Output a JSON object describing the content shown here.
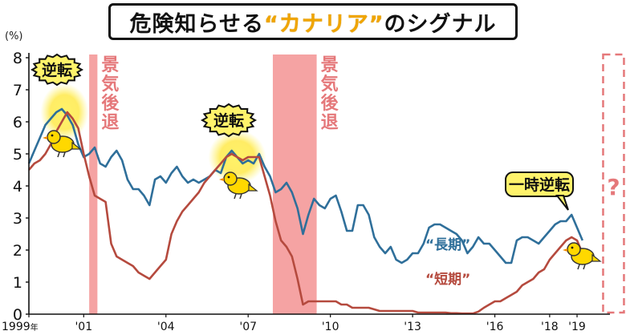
{
  "title": {
    "prefix": "危険知らせる",
    "highlight": "“カナリア”",
    "suffix": "のシグナル"
  },
  "colors": {
    "long": "#2f6f9a",
    "short": "#b54a3e",
    "recession": "#f5a3a3",
    "recession_text": "#e5787a",
    "question": "#e5787a",
    "glow": "#fff36b"
  },
  "chart_data": {
    "type": "line",
    "unit": "(%)",
    "ylim": [
      0,
      8
    ],
    "y_ticks": [
      0,
      1,
      2,
      3,
      4,
      5,
      6,
      7,
      8
    ],
    "xlim": [
      1999.0,
      2020.2
    ],
    "x_ticks": [
      {
        "value": 1999.0,
        "label": "1999",
        "suffix": "年"
      },
      {
        "value": 2001.0,
        "label": "'01"
      },
      {
        "value": 2004.0,
        "label": "'04"
      },
      {
        "value": 2007.0,
        "label": "'07"
      },
      {
        "value": 2010.0,
        "label": "'10"
      },
      {
        "value": 2013.0,
        "label": "'13"
      },
      {
        "value": 2016.0,
        "label": "'16"
      },
      {
        "value": 2018.0,
        "label": "'18"
      },
      {
        "value": 2019.0,
        "label": "'19"
      }
    ],
    "recessions": [
      {
        "start": 2001.2,
        "end": 2001.5,
        "label": "景気後退"
      },
      {
        "start": 2007.9,
        "end": 2009.5,
        "label": "景気後退"
      }
    ],
    "series": [
      {
        "name": "“長期”",
        "x": [
          1999.0,
          1999.2,
          1999.4,
          1999.6,
          1999.8,
          2000.0,
          2000.2,
          2000.4,
          2000.6,
          2000.8,
          2001.0,
          2001.2,
          2001.4,
          2001.6,
          2001.8,
          2002.0,
          2002.2,
          2002.4,
          2002.6,
          2002.8,
          2003.0,
          2003.2,
          2003.4,
          2003.6,
          2003.8,
          2004.0,
          2004.2,
          2004.4,
          2004.6,
          2004.8,
          2005.0,
          2005.2,
          2005.4,
          2005.6,
          2005.8,
          2006.0,
          2006.2,
          2006.4,
          2006.6,
          2006.8,
          2007.0,
          2007.2,
          2007.4,
          2007.6,
          2007.8,
          2008.0,
          2008.2,
          2008.4,
          2008.6,
          2008.8,
          2009.0,
          2009.2,
          2009.4,
          2009.6,
          2009.8,
          2010.0,
          2010.2,
          2010.4,
          2010.6,
          2010.8,
          2011.0,
          2011.2,
          2011.4,
          2011.6,
          2011.8,
          2012.0,
          2012.2,
          2012.4,
          2012.6,
          2012.8,
          2013.0,
          2013.2,
          2013.4,
          2013.6,
          2013.8,
          2014.0,
          2014.2,
          2014.4,
          2014.6,
          2014.8,
          2015.0,
          2015.2,
          2015.4,
          2015.6,
          2015.8,
          2016.0,
          2016.2,
          2016.4,
          2016.6,
          2016.8,
          2017.0,
          2017.2,
          2017.4,
          2017.6,
          2017.8,
          2018.0,
          2018.2,
          2018.4,
          2018.6,
          2018.8,
          2019.0,
          2019.2
        ],
        "values": [
          4.7,
          5.1,
          5.5,
          5.9,
          6.1,
          6.3,
          6.4,
          6.2,
          5.9,
          5.3,
          4.9,
          5.0,
          5.2,
          4.7,
          4.6,
          4.9,
          5.1,
          4.8,
          4.2,
          3.9,
          3.9,
          3.7,
          3.4,
          4.2,
          4.3,
          4.1,
          4.4,
          4.6,
          4.3,
          4.1,
          4.2,
          4.1,
          4.2,
          4.3,
          4.5,
          4.4,
          4.9,
          5.1,
          4.9,
          4.7,
          4.8,
          4.7,
          5.0,
          4.6,
          4.3,
          3.8,
          3.9,
          4.1,
          3.8,
          3.3,
          2.5,
          3.1,
          3.6,
          3.4,
          3.3,
          3.6,
          3.7,
          3.2,
          2.6,
          2.6,
          3.4,
          3.4,
          3.1,
          2.4,
          2.1,
          1.9,
          2.1,
          1.7,
          1.6,
          1.7,
          1.9,
          1.9,
          2.2,
          2.7,
          2.8,
          2.8,
          2.7,
          2.6,
          2.5,
          2.3,
          1.9,
          2.1,
          2.4,
          2.2,
          2.2,
          2.0,
          1.8,
          1.6,
          1.6,
          2.3,
          2.4,
          2.4,
          2.3,
          2.2,
          2.4,
          2.6,
          2.8,
          2.9,
          2.9,
          3.1,
          2.7,
          2.3
        ]
      },
      {
        "name": "“短期”",
        "x": [
          1999.0,
          1999.2,
          1999.4,
          1999.6,
          1999.8,
          2000.0,
          2000.2,
          2000.4,
          2000.6,
          2000.8,
          2001.0,
          2001.2,
          2001.4,
          2001.6,
          2001.8,
          2002.0,
          2002.2,
          2002.4,
          2002.6,
          2002.8,
          2003.0,
          2003.2,
          2003.4,
          2003.6,
          2003.8,
          2004.0,
          2004.2,
          2004.4,
          2004.6,
          2004.8,
          2005.0,
          2005.2,
          2005.4,
          2005.6,
          2005.8,
          2006.0,
          2006.2,
          2006.4,
          2006.6,
          2006.8,
          2007.0,
          2007.2,
          2007.4,
          2007.6,
          2007.8,
          2008.0,
          2008.2,
          2008.4,
          2008.6,
          2008.8,
          2009.0,
          2009.2,
          2009.4,
          2009.6,
          2009.8,
          2010.0,
          2010.2,
          2010.4,
          2010.6,
          2010.8,
          2011.0,
          2011.2,
          2011.4,
          2011.6,
          2011.8,
          2012.0,
          2012.2,
          2012.4,
          2012.6,
          2012.8,
          2013.0,
          2013.2,
          2013.4,
          2013.6,
          2013.8,
          2014.0,
          2014.2,
          2014.4,
          2014.6,
          2014.8,
          2015.0,
          2015.2,
          2015.4,
          2015.6,
          2015.8,
          2016.0,
          2016.2,
          2016.4,
          2016.6,
          2016.8,
          2017.0,
          2017.2,
          2017.4,
          2017.6,
          2017.8,
          2018.0,
          2018.2,
          2018.4,
          2018.6,
          2018.8,
          2019.0,
          2019.2
        ],
        "values": [
          4.5,
          4.7,
          4.8,
          5.0,
          5.3,
          5.7,
          6.0,
          6.3,
          6.1,
          5.8,
          5.0,
          4.3,
          3.7,
          3.6,
          3.5,
          2.2,
          1.8,
          1.7,
          1.6,
          1.5,
          1.3,
          1.2,
          1.1,
          1.3,
          1.5,
          1.7,
          2.5,
          2.9,
          3.2,
          3.4,
          3.6,
          3.8,
          4.1,
          4.3,
          4.5,
          4.7,
          4.9,
          5.0,
          4.9,
          4.8,
          4.9,
          4.9,
          4.9,
          4.3,
          3.7,
          2.9,
          2.3,
          2.1,
          1.8,
          1.1,
          0.3,
          0.4,
          0.4,
          0.4,
          0.4,
          0.4,
          0.4,
          0.3,
          0.3,
          0.2,
          0.2,
          0.2,
          0.2,
          0.15,
          0.1,
          0.1,
          0.1,
          0.1,
          0.1,
          0.1,
          0.1,
          0.05,
          0.05,
          0.05,
          0.05,
          0.05,
          0.05,
          0.03,
          0.03,
          0.02,
          0.02,
          0.02,
          0.08,
          0.2,
          0.3,
          0.4,
          0.4,
          0.5,
          0.6,
          0.7,
          0.9,
          1.0,
          1.1,
          1.3,
          1.4,
          1.7,
          1.9,
          2.1,
          2.3,
          2.4,
          2.3,
          1.9
        ]
      }
    ],
    "annotations": [
      {
        "text": "逆転",
        "x": 2000.3
      },
      {
        "text": "逆転",
        "x": 2006.6
      },
      {
        "text": "一時逆転",
        "x": 2019.0
      },
      {
        "text": "?",
        "x": 2019.9
      }
    ]
  }
}
